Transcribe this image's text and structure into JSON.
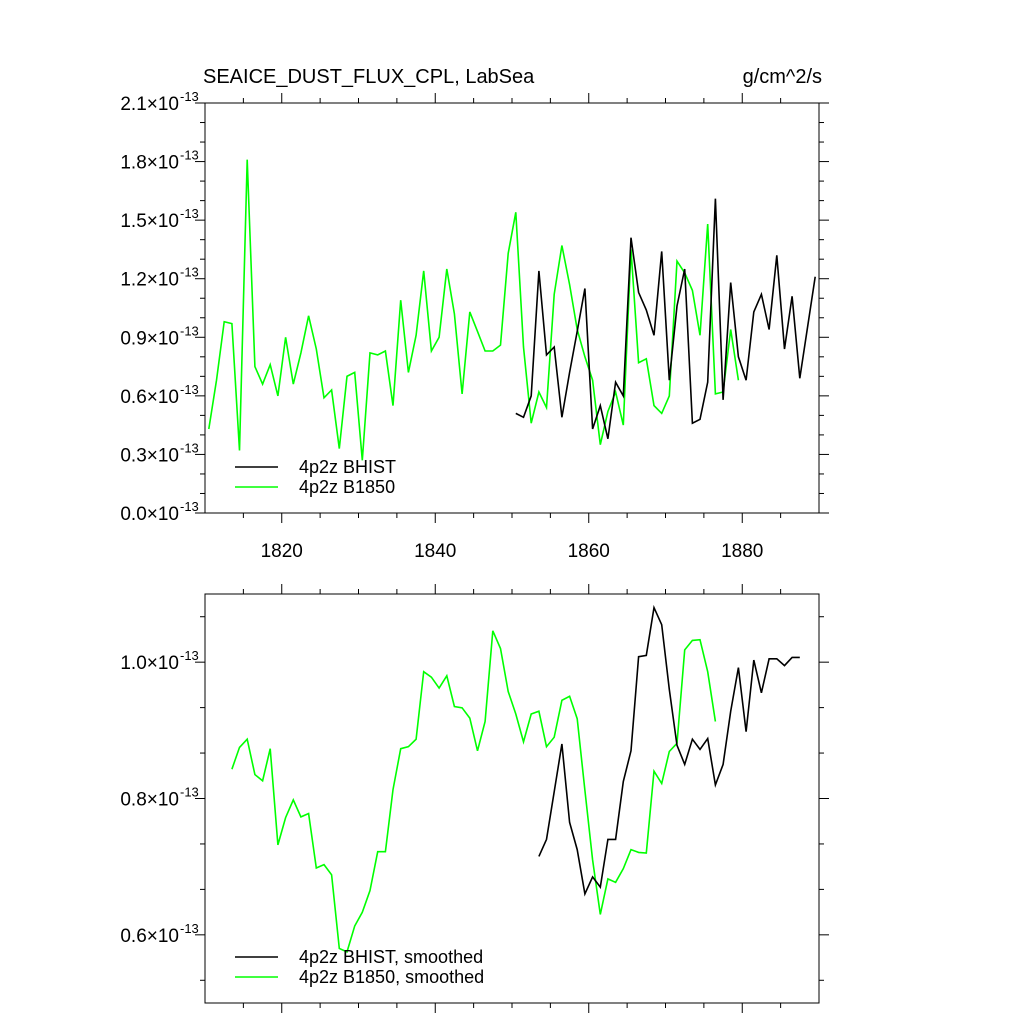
{
  "chart_data": [
    {
      "type": "line",
      "title": "SEAICE_DUST_FLUX_CPL, LabSea",
      "units": "g/cm^2/s",
      "xlim": [
        1810,
        1890
      ],
      "ylim": [
        0.0,
        2.1
      ],
      "y_exponent": "-13",
      "y_ticks": [
        0.0,
        0.3,
        0.6,
        0.9,
        1.2,
        1.5,
        1.8,
        2.1
      ],
      "y_tick_labels": [
        "0.0",
        "0.3",
        "0.6",
        "0.9",
        "1.2",
        "1.5",
        "1.8",
        "2.1"
      ],
      "x_ticks": [
        1820,
        1840,
        1860,
        1880
      ],
      "x_tick_labels": [
        "1820",
        "1840",
        "1860",
        "1880"
      ],
      "legend_position": "bottom-left",
      "series": [
        {
          "name": "4p2z BHIST",
          "color": "#000000",
          "x": [
            1850.5,
            1851.5,
            1852.5,
            1853.5,
            1854.5,
            1855.5,
            1856.5,
            1857.5,
            1858.5,
            1859.5,
            1860.5,
            1861.5,
            1862.5,
            1863.5,
            1864.5,
            1865.5,
            1866.5,
            1867.5,
            1868.5,
            1869.5,
            1870.5,
            1871.5,
            1872.5,
            1873.5,
            1874.5,
            1875.5,
            1876.5,
            1877.5,
            1878.5,
            1879.5,
            1880.5,
            1881.5,
            1882.5,
            1883.5,
            1884.5,
            1885.5,
            1886.5,
            1887.5,
            1888.5,
            1889.5
          ],
          "values": [
            0.51,
            0.49,
            0.6,
            1.24,
            0.81,
            0.85,
            0.49,
            0.72,
            0.93,
            1.15,
            0.43,
            0.55,
            0.38,
            0.67,
            0.6,
            1.41,
            1.13,
            1.04,
            0.91,
            1.34,
            0.68,
            1.06,
            1.25,
            0.46,
            0.48,
            0.67,
            1.61,
            0.58,
            1.18,
            0.8,
            0.68,
            1.03,
            1.12,
            0.94,
            1.32,
            0.84,
            1.11,
            0.69,
            0.95,
            1.21
          ]
        },
        {
          "name": "4p2z B1850",
          "color": "#00ff00",
          "x": [
            1810.5,
            1811.5,
            1812.5,
            1813.5,
            1814.5,
            1815.5,
            1816.5,
            1817.5,
            1818.5,
            1819.5,
            1820.5,
            1821.5,
            1822.5,
            1823.5,
            1824.5,
            1825.5,
            1826.5,
            1827.5,
            1828.5,
            1829.5,
            1830.5,
            1831.5,
            1832.5,
            1833.5,
            1834.5,
            1835.5,
            1836.5,
            1837.5,
            1838.5,
            1839.5,
            1840.5,
            1841.5,
            1842.5,
            1843.5,
            1844.5,
            1845.5,
            1846.5,
            1847.5,
            1848.5,
            1849.5,
            1850.5,
            1851.5,
            1852.5,
            1853.5,
            1854.5,
            1855.5,
            1856.5,
            1857.5,
            1858.5,
            1859.5,
            1860.5,
            1861.5,
            1862.5,
            1863.5,
            1864.5,
            1865.5,
            1866.5,
            1867.5,
            1868.5,
            1869.5,
            1870.5,
            1871.5,
            1872.5,
            1873.5,
            1874.5,
            1875.5,
            1876.5,
            1877.5,
            1878.5,
            1879.5
          ],
          "values": [
            0.43,
            0.68,
            0.98,
            0.97,
            0.32,
            1.81,
            0.75,
            0.66,
            0.76,
            0.6,
            0.9,
            0.66,
            0.82,
            1.01,
            0.84,
            0.59,
            0.63,
            0.33,
            0.7,
            0.72,
            0.27,
            0.82,
            0.81,
            0.83,
            0.55,
            1.09,
            0.72,
            0.91,
            1.24,
            0.83,
            0.9,
            1.25,
            1.02,
            0.61,
            1.03,
            0.93,
            0.83,
            0.83,
            0.86,
            1.33,
            1.54,
            0.85,
            0.46,
            0.62,
            0.54,
            1.12,
            1.37,
            1.17,
            0.94,
            0.8,
            0.68,
            0.35,
            0.52,
            0.62,
            0.45,
            1.35,
            0.77,
            0.79,
            0.55,
            0.51,
            0.6,
            1.29,
            1.23,
            1.14,
            0.91,
            1.48,
            0.61,
            0.62,
            0.94,
            0.68
          ]
        }
      ]
    },
    {
      "type": "line",
      "title": "",
      "xlim": [
        1810,
        1890
      ],
      "ylim": [
        0.5,
        1.1
      ],
      "y_exponent": "-13",
      "y_ticks": [
        0.6,
        0.8,
        1.0
      ],
      "y_tick_labels": [
        "0.6",
        "0.8",
        "1.0"
      ],
      "x_ticks": [
        1820,
        1840,
        1860,
        1880
      ],
      "x_tick_labels": [],
      "legend_position": "bottom-left",
      "series": [
        {
          "name": "4p2z BHIST, smoothed",
          "color": "#000000",
          "x": [
            1853.5,
            1854.5,
            1855.5,
            1856.5,
            1857.5,
            1858.5,
            1859.5,
            1860.5,
            1861.5,
            1862.5,
            1863.5,
            1864.5,
            1865.5,
            1866.5,
            1867.5,
            1868.5,
            1869.5,
            1870.5,
            1871.5,
            1872.5,
            1873.5,
            1874.5,
            1875.5,
            1876.5,
            1877.5,
            1878.5,
            1879.5,
            1880.5,
            1881.5,
            1882.5,
            1883.5,
            1884.5,
            1885.5,
            1886.5,
            1887.5
          ],
          "values": [
            0.715,
            0.74,
            0.81,
            0.88,
            0.765,
            0.725,
            0.66,
            0.685,
            0.67,
            0.74,
            0.74,
            0.825,
            0.87,
            1.008,
            1.01,
            1.08,
            1.055,
            0.96,
            0.878,
            0.85,
            0.887,
            0.872,
            0.888,
            0.82,
            0.85,
            0.928,
            0.992,
            0.898,
            1.003,
            0.955,
            1.005,
            1.005,
            0.995,
            1.007,
            1.007
          ]
        },
        {
          "name": "4p2z B1850, smoothed",
          "color": "#00ff00",
          "x": [
            1813.5,
            1814.5,
            1815.5,
            1816.5,
            1817.5,
            1818.5,
            1819.5,
            1820.5,
            1821.5,
            1822.5,
            1823.5,
            1824.5,
            1825.5,
            1826.5,
            1827.5,
            1828.5,
            1829.5,
            1830.5,
            1831.5,
            1832.5,
            1833.5,
            1834.5,
            1835.5,
            1836.5,
            1837.5,
            1838.5,
            1839.5,
            1840.5,
            1841.5,
            1842.5,
            1843.5,
            1844.5,
            1845.5,
            1846.5,
            1847.5,
            1848.5,
            1849.5,
            1850.5,
            1851.5,
            1852.5,
            1853.5,
            1854.5,
            1855.5,
            1856.5,
            1857.5,
            1858.5,
            1859.5,
            1860.5,
            1861.5,
            1862.5,
            1863.5,
            1864.5,
            1865.5,
            1866.5,
            1867.5,
            1868.5,
            1869.5,
            1870.5,
            1871.5,
            1872.5,
            1873.5,
            1874.5,
            1875.5,
            1876.5
          ],
          "values": [
            0.843,
            0.875,
            0.887,
            0.835,
            0.826,
            0.873,
            0.732,
            0.772,
            0.798,
            0.773,
            0.778,
            0.698,
            0.703,
            0.688,
            0.58,
            0.575,
            0.613,
            0.633,
            0.665,
            0.722,
            0.722,
            0.813,
            0.873,
            0.876,
            0.887,
            0.986,
            0.978,
            0.962,
            0.98,
            0.935,
            0.933,
            0.918,
            0.87,
            0.913,
            1.046,
            1.02,
            0.957,
            0.924,
            0.883,
            0.924,
            0.928,
            0.876,
            0.89,
            0.944,
            0.95,
            0.917,
            0.812,
            0.71,
            0.63,
            0.682,
            0.677,
            0.697,
            0.725,
            0.721,
            0.72,
            0.84,
            0.822,
            0.869,
            0.881,
            1.018,
            1.032,
            1.033,
            0.986,
            0.913
          ]
        }
      ]
    }
  ]
}
